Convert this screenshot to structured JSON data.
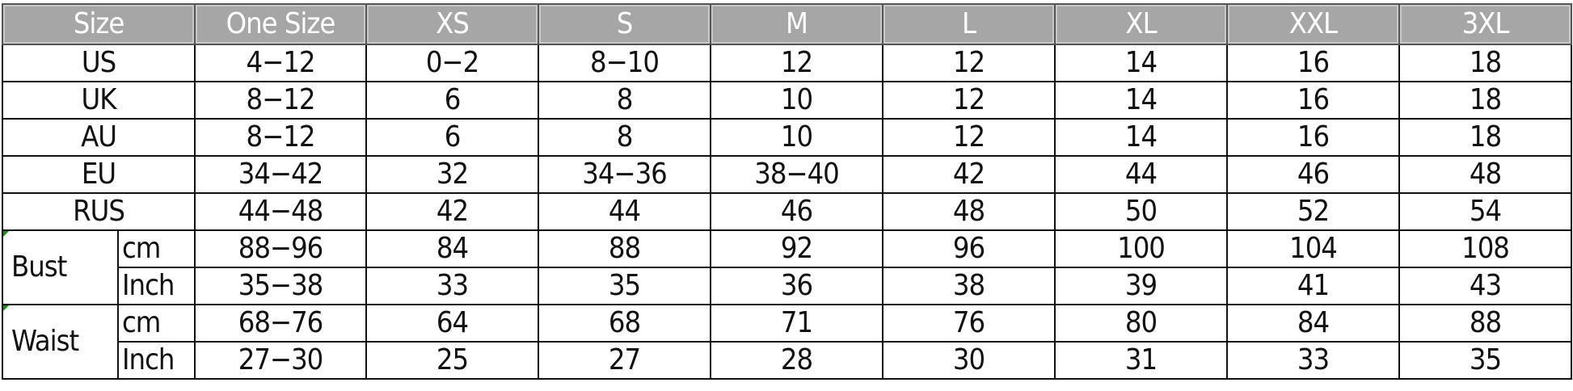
{
  "header": [
    "Size",
    "One  Size",
    "XS",
    "S",
    "M",
    "L",
    "XL",
    "XXL",
    "3XL"
  ],
  "rows": [
    {
      "label": "US",
      "values": [
        "4−12",
        "0−2",
        "8−10",
        "12",
        "12",
        "14",
        "16",
        "18"
      ]
    },
    {
      "label": "UK",
      "values": [
        "8−12",
        "6",
        "8",
        "10",
        "12",
        "14",
        "16",
        "18"
      ]
    },
    {
      "label": "AU",
      "values": [
        "8−12",
        "6",
        "8",
        "10",
        "12",
        "14",
        "16",
        "18"
      ]
    },
    {
      "label": "EU",
      "values": [
        "34−42",
        "32",
        "34−36",
        "38−40",
        "42",
        "44",
        "46",
        "48"
      ]
    },
    {
      "label": "RUS",
      "values": [
        "44−48",
        "42",
        "44",
        "46",
        "48",
        "50",
        "52",
        "54"
      ]
    }
  ],
  "groups": [
    {
      "label": "Bust",
      "sub": [
        {
          "unit": "cm",
          "values": [
            "88−96",
            "84",
            "88",
            "92",
            "96",
            "100",
            "104",
            "108"
          ]
        },
        {
          "unit": "Inch",
          "values": [
            "35−38",
            "33",
            "35",
            "36",
            "38",
            "39",
            "41",
            "43"
          ]
        }
      ]
    },
    {
      "label": "Waist",
      "sub": [
        {
          "unit": "cm",
          "values": [
            "68−76",
            "64",
            "68",
            "71",
            "76",
            "80",
            "84",
            "88"
          ]
        },
        {
          "unit": "Inch",
          "values": [
            "27−30",
            "25",
            "27",
            "28",
            "30",
            "31",
            "33",
            "35"
          ]
        }
      ]
    }
  ],
  "colors": {
    "header_bg": "#a6a6a6",
    "header_text": "#ffffff",
    "border": "#111111"
  }
}
